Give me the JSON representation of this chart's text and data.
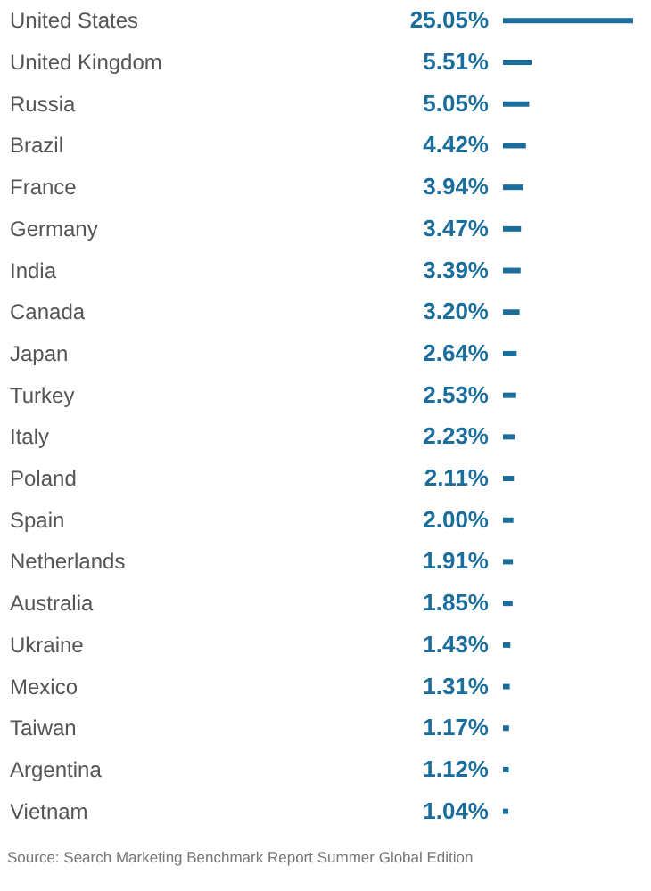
{
  "chart_data": {
    "type": "bar",
    "orientation": "horizontal",
    "categories": [
      "United States",
      "United Kingdom",
      "Russia",
      "Brazil",
      "France",
      "Germany",
      "India",
      "Canada",
      "Japan",
      "Turkey",
      "Italy",
      "Poland",
      "Spain",
      "Netherlands",
      "Australia",
      "Ukraine",
      "Mexico",
      "Taiwan",
      "Argentina",
      "Vietnam"
    ],
    "values": [
      25.05,
      5.51,
      5.05,
      4.42,
      3.94,
      3.47,
      3.39,
      3.2,
      2.64,
      2.53,
      2.23,
      2.11,
      2.0,
      1.91,
      1.85,
      1.43,
      1.31,
      1.17,
      1.12,
      1.04
    ],
    "value_labels": [
      "25.05%",
      "5.51%",
      "5.05%",
      "4.42%",
      "3.94%",
      "3.47%",
      "3.39%",
      "3.20%",
      "2.64%",
      "2.53%",
      "2.23%",
      "2.11%",
      "2.00%",
      "1.91%",
      "1.85%",
      "1.43%",
      "1.31%",
      "1.17%",
      "1.12%",
      "1.04%"
    ],
    "color": "#1b6e9c",
    "annotations": [
      "Source: Search Marketing Benchmark Report Summer Global Edition"
    ]
  }
}
